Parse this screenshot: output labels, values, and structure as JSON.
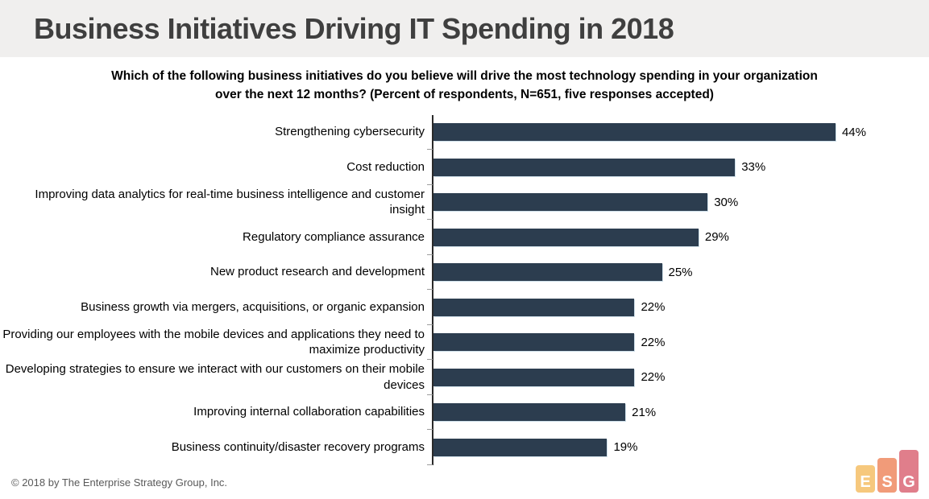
{
  "header": {
    "title": "Business Initiatives Driving IT Spending in 2018"
  },
  "survey_question": "Which of the following business initiatives do you believe will drive the most technology spending in your organization over the next 12 months? (Percent of respondents, N=651, five responses accepted)",
  "chart_data": {
    "type": "bar",
    "orientation": "horizontal",
    "title": "Business Initiatives Driving IT Spending in 2018",
    "xlabel": "Percent of respondents",
    "ylabel": "",
    "xlim": [
      0,
      48
    ],
    "grid": false,
    "legend": "none",
    "bar_color": "#2c3d4f",
    "value_suffix": "%",
    "categories": [
      "Strengthening cybersecurity",
      "Cost reduction",
      "Improving data analytics for real-time business intelligence and customer insight",
      "Regulatory compliance assurance",
      "New product research and development",
      "Business growth via mergers, acquisitions, or organic expansion",
      "Providing our employees with the mobile devices and applications they need to maximize productivity",
      "Developing strategies to ensure we interact with our customers on their mobile devices",
      "Improving internal collaboration capabilities",
      "Business continuity/disaster recovery programs"
    ],
    "values": [
      44,
      33,
      30,
      29,
      25,
      22,
      22,
      22,
      21,
      19
    ]
  },
  "footer": {
    "copyright": "© 2018 by The Enterprise Strategy Group, Inc."
  },
  "logo": {
    "name": "ESG",
    "blocks": [
      {
        "letter": "E",
        "color": "#f6c87d"
      },
      {
        "letter": "S",
        "color": "#f19b79"
      },
      {
        "letter": "G",
        "color": "#e07e8b"
      }
    ]
  }
}
